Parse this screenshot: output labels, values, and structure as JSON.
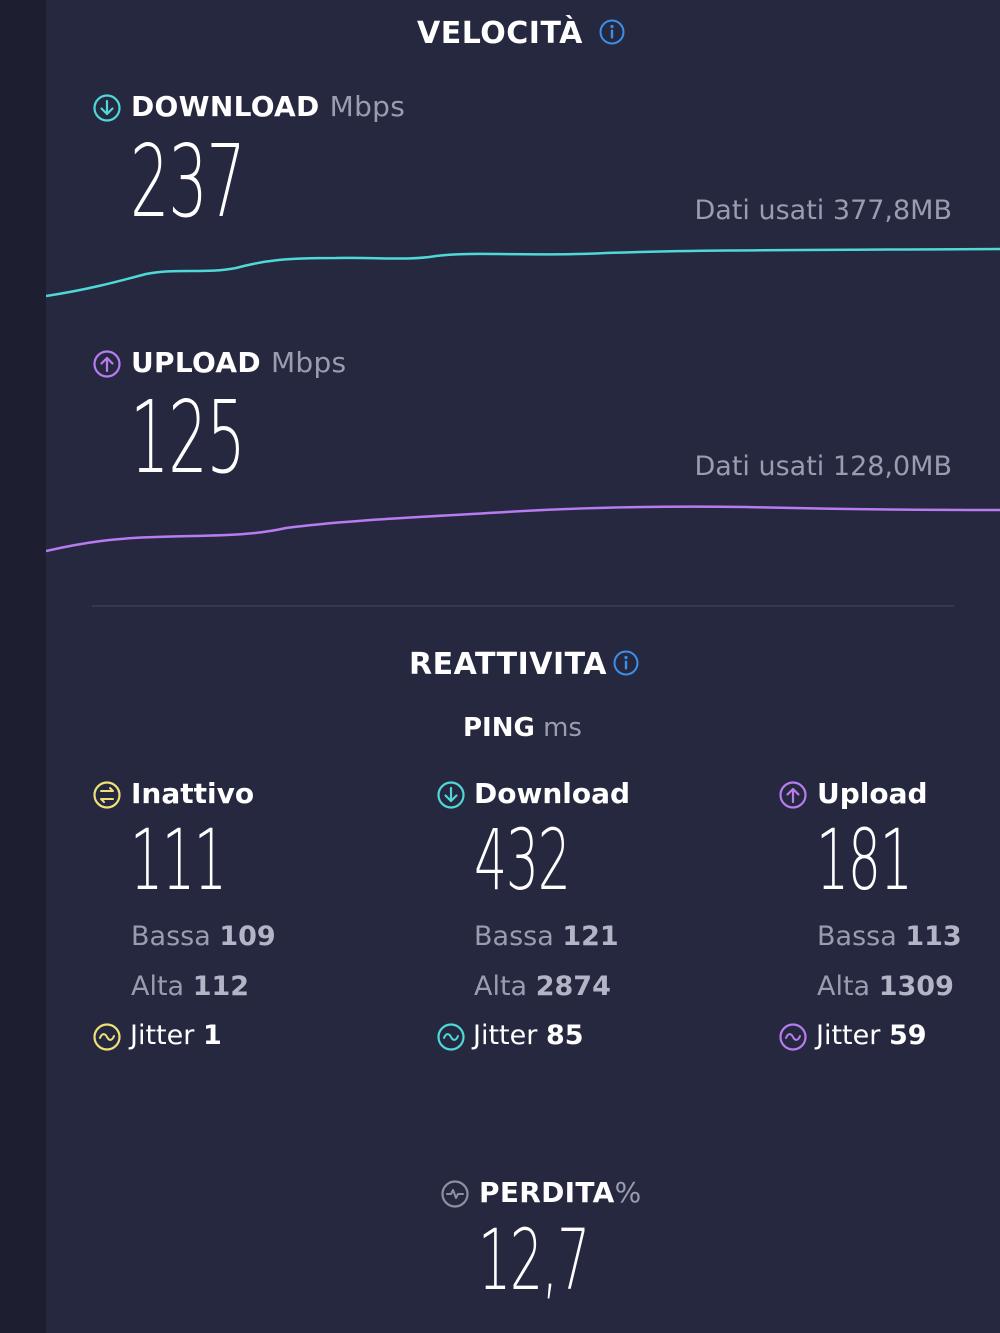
{
  "speed": {
    "title": "VELOCITÀ",
    "download": {
      "label": "DOWNLOAD",
      "unit": "Mbps",
      "value": "237",
      "data_used": "Dati usati 377,8MB",
      "color": "#4fd8d8",
      "icon": "arrow-down-circle-icon"
    },
    "upload": {
      "label": "UPLOAD",
      "unit": "Mbps",
      "value": "125",
      "data_used": "Dati usati 128,0MB",
      "color": "#b77cf0",
      "icon": "arrow-up-circle-icon"
    }
  },
  "responsiveness": {
    "title": "REATTIVITA",
    "ping_label": "PING",
    "ping_unit": "ms",
    "columns": [
      {
        "label": "Inattivo",
        "value": "111",
        "low_label": "Bassa",
        "low": "109",
        "high_label": "Alta",
        "high": "112",
        "jitter_label": "Jitter",
        "jitter": "1",
        "color": "#f0e07a",
        "icon": "idle-circle-icon"
      },
      {
        "label": "Download",
        "value": "432",
        "low_label": "Bassa",
        "low": "121",
        "high_label": "Alta",
        "high": "2874",
        "jitter_label": "Jitter",
        "jitter": "85",
        "color": "#4fd8d8",
        "icon": "arrow-down-circle-icon"
      },
      {
        "label": "Upload",
        "value": "181",
        "low_label": "Bassa",
        "low": "113",
        "high_label": "Alta",
        "high": "1309",
        "jitter_label": "Jitter",
        "jitter": "59",
        "color": "#b77cf0",
        "icon": "arrow-up-circle-icon"
      }
    ]
  },
  "loss": {
    "label": "PERDITA",
    "unit": "%",
    "value": "12,7",
    "icon": "packet-loss-icon"
  },
  "colors": {
    "background": "#262840",
    "accent_info": "#3b8fe8"
  }
}
